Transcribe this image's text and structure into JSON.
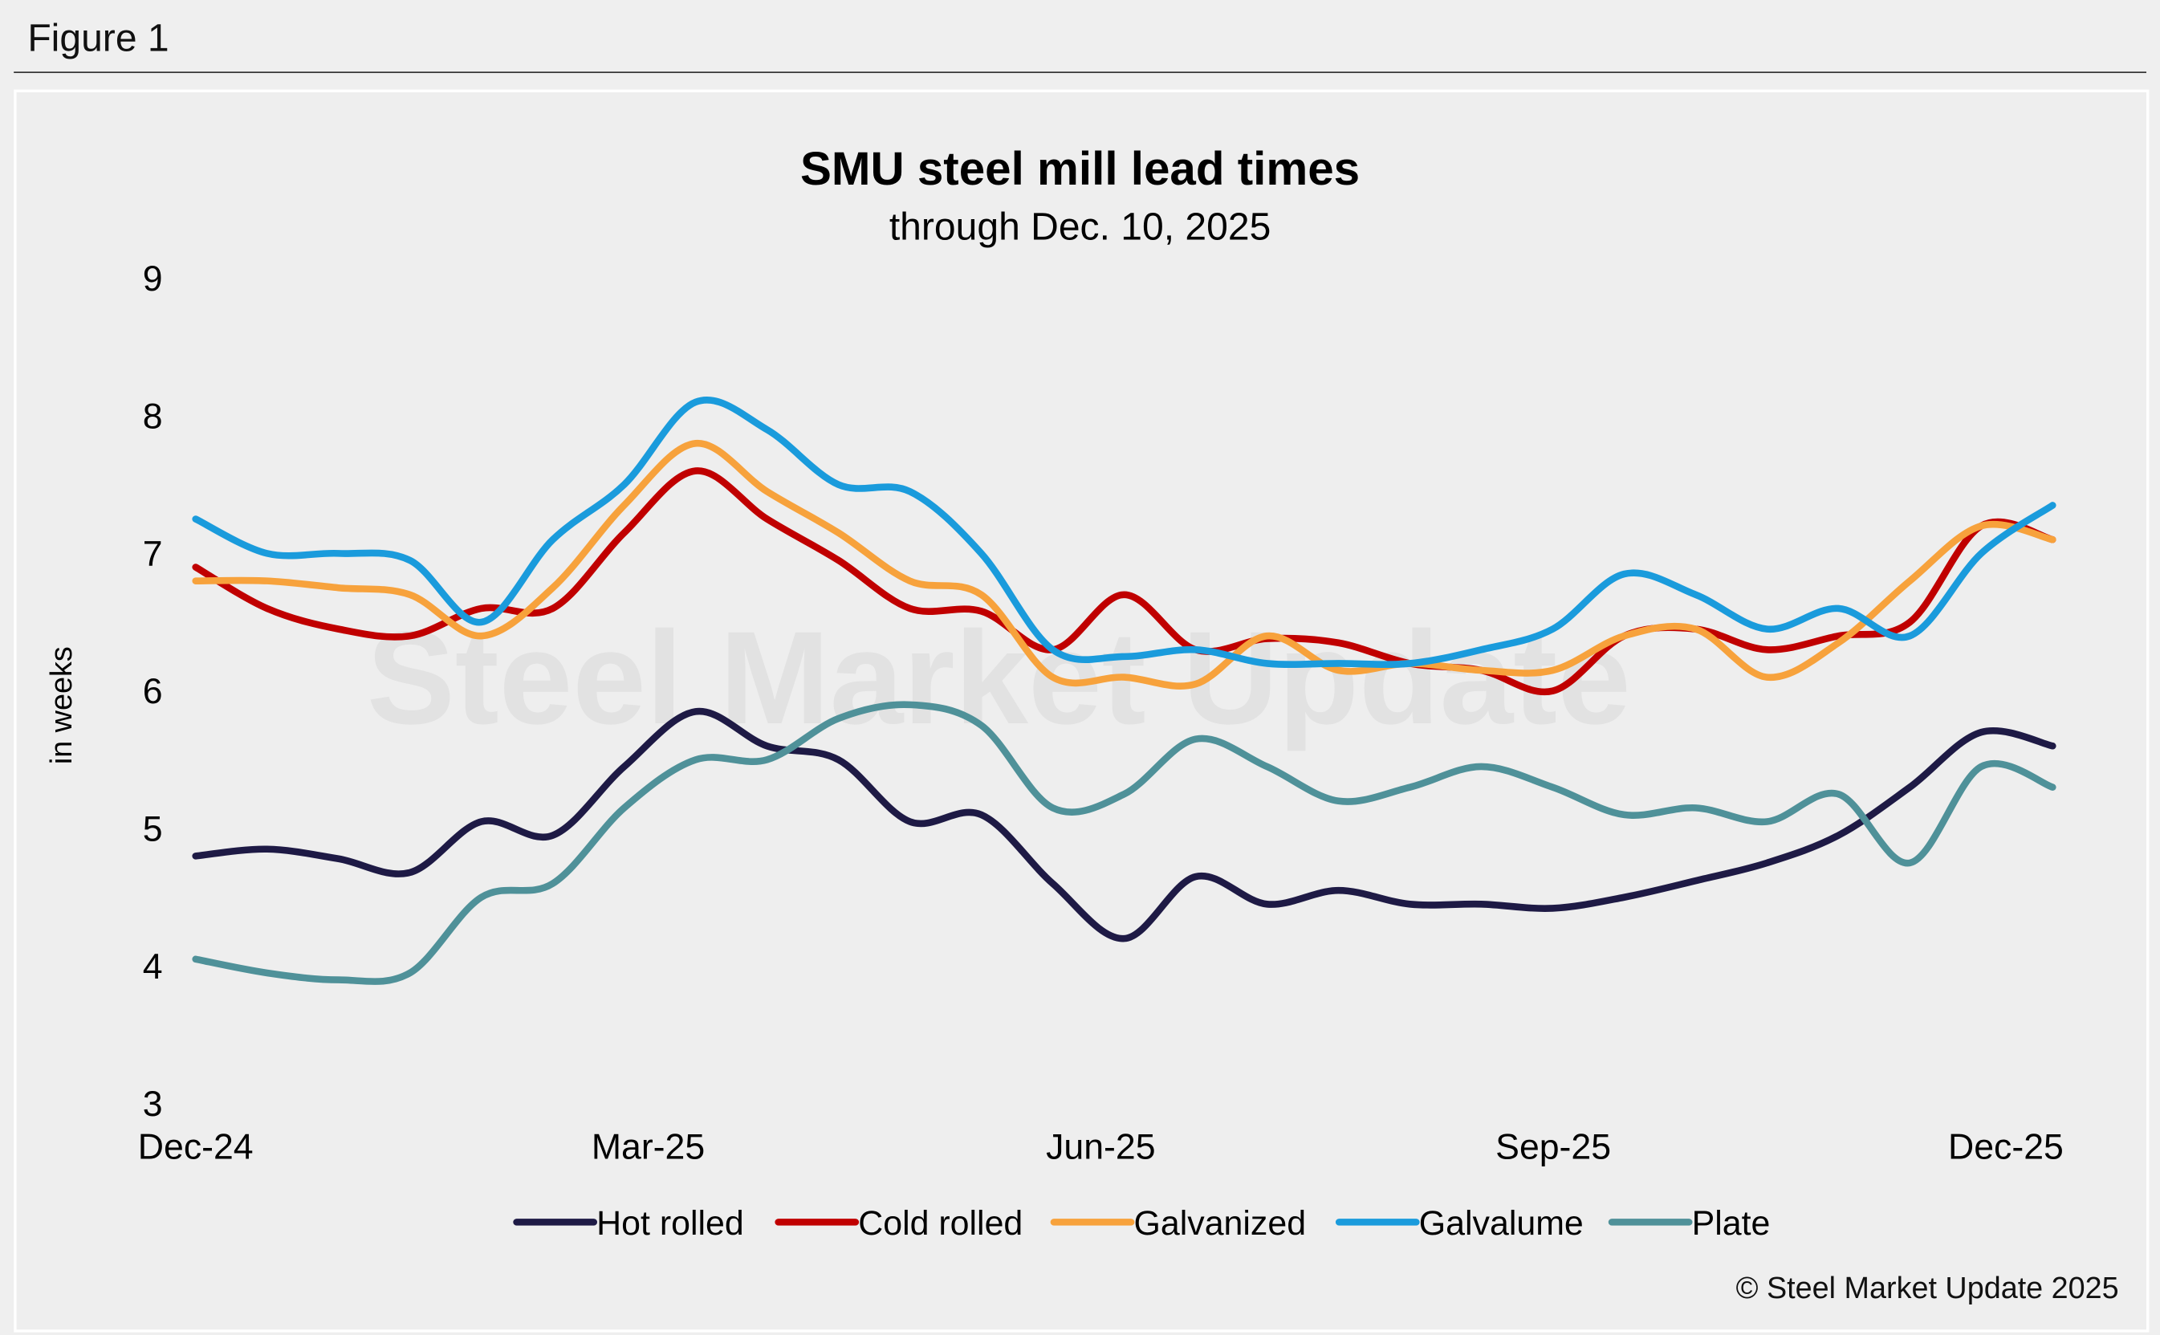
{
  "figure_label": "Figure 1",
  "copyright": "© Steel Market Update 2025",
  "watermark": "Steel Market Update",
  "chart_data": {
    "type": "line",
    "title": "SMU steel mill lead times",
    "subtitle": "through Dec. 10, 2025",
    "ylabel": "in weeks",
    "xlabel": "",
    "ylim": [
      3,
      9
    ],
    "yticks": [
      3,
      4,
      5,
      6,
      7,
      8,
      9
    ],
    "xtick_labels": [
      "Dec-24",
      "Mar-25",
      "Jun-25",
      "Sep-25",
      "Dec-25"
    ],
    "grid": false,
    "legend_position": "bottom",
    "x": [
      "2024-12-11",
      "2024-12-25",
      "2025-01-08",
      "2025-01-22",
      "2025-02-05",
      "2025-02-19",
      "2025-03-05",
      "2025-03-19",
      "2025-04-02",
      "2025-04-16",
      "2025-04-30",
      "2025-05-14",
      "2025-05-28",
      "2025-06-11",
      "2025-06-25",
      "2025-07-09",
      "2025-07-23",
      "2025-08-06",
      "2025-08-20",
      "2025-09-03",
      "2025-09-17",
      "2025-10-01",
      "2025-10-15",
      "2025-10-29",
      "2025-11-12",
      "2025-11-26",
      "2025-12-10"
    ],
    "series": [
      {
        "name": "Hot rolled",
        "color": "#1e1a45",
        "values": [
          4.8,
          4.85,
          4.78,
          4.68,
          5.05,
          4.95,
          5.45,
          5.85,
          5.6,
          5.5,
          5.05,
          5.1,
          4.6,
          4.2,
          4.65,
          4.45,
          4.55,
          4.45,
          4.45,
          4.42,
          4.5,
          4.62,
          4.75,
          4.95,
          5.3,
          5.7,
          5.6
        ]
      },
      {
        "name": "Cold rolled",
        "color": "#c00000",
        "values": [
          6.9,
          6.6,
          6.45,
          6.4,
          6.6,
          6.6,
          7.15,
          7.6,
          7.25,
          6.95,
          6.6,
          6.58,
          6.3,
          6.7,
          6.3,
          6.38,
          6.35,
          6.2,
          6.15,
          6.0,
          6.4,
          6.45,
          6.3,
          6.4,
          6.5,
          7.2,
          7.1
        ]
      },
      {
        "name": "Galvanized",
        "color": "#f7a23c",
        "values": [
          6.8,
          6.8,
          6.75,
          6.7,
          6.4,
          6.75,
          7.35,
          7.8,
          7.45,
          7.15,
          6.8,
          6.7,
          6.1,
          6.1,
          6.05,
          6.4,
          6.15,
          6.2,
          6.15,
          6.15,
          6.4,
          6.45,
          6.1,
          6.35,
          6.8,
          7.2,
          7.1
        ]
      },
      {
        "name": "Galvalume",
        "color": "#1a9bdc",
        "values": [
          7.25,
          7.0,
          7.0,
          6.95,
          6.5,
          7.1,
          7.5,
          8.1,
          7.9,
          7.5,
          7.45,
          7.0,
          6.3,
          6.25,
          6.3,
          6.2,
          6.2,
          6.2,
          6.3,
          6.45,
          6.85,
          6.7,
          6.45,
          6.6,
          6.4,
          7.0,
          7.35
        ]
      },
      {
        "name": "Plate",
        "color": "#4f9199",
        "values": [
          4.05,
          3.95,
          3.9,
          3.95,
          4.5,
          4.6,
          5.15,
          5.5,
          5.5,
          5.8,
          5.9,
          5.75,
          5.15,
          5.25,
          5.65,
          5.45,
          5.2,
          5.3,
          5.45,
          5.3,
          5.1,
          5.15,
          5.05,
          5.25,
          4.75,
          5.45,
          5.3
        ]
      }
    ]
  }
}
